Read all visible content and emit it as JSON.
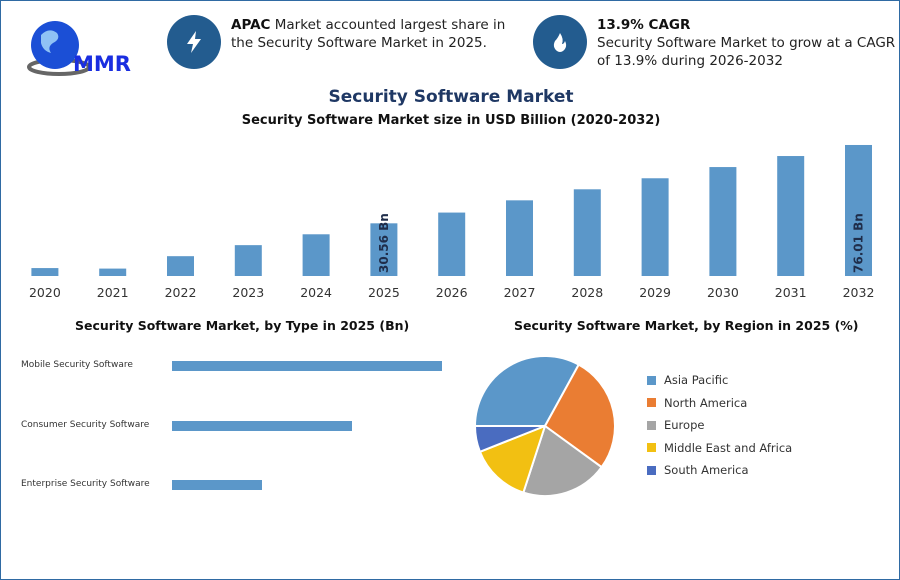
{
  "logo": {
    "text": "MMR"
  },
  "info_cards": [
    {
      "icon": "lightning-icon",
      "bold": "APAC",
      "text": " Market accounted largest share in the Security Software Market in 2025."
    },
    {
      "icon": "flame-icon",
      "bold": "13.9% CAGR",
      "text": "Security Software Market to grow at a CAGR of 13.9% during 2026-2032"
    }
  ],
  "colors": {
    "bar": "#5b97c9",
    "accent": "#235c8f",
    "title": "#1f3864"
  },
  "chart_data": [
    {
      "type": "bar",
      "title": "Security Software Market",
      "subtitle": "Security Software Market size in USD Billion (2020-2032)",
      "categories": [
        "2020",
        "2021",
        "2022",
        "2023",
        "2024",
        "2025",
        "2026",
        "2027",
        "2028",
        "2029",
        "2030",
        "2031",
        "2032"
      ],
      "values": [
        4.6,
        4.3,
        11.5,
        17.9,
        24.2,
        30.56,
        36.8,
        43.9,
        50.3,
        56.7,
        63.2,
        69.6,
        76.01
      ],
      "data_labels": {
        "5": "30.56 Bn",
        "12": "76.01 Bn"
      },
      "ylim": [
        0,
        80
      ],
      "grid": false
    },
    {
      "type": "bar",
      "orientation": "horizontal",
      "title": "Security Software Market, by Type in 2025 (Bn)",
      "categories": [
        "Mobile Security Software",
        "Consumer Security Software",
        "Enterprise Security Software"
      ],
      "values": [
        3,
        2,
        1
      ],
      "value_note": "relative lengths; no axis shown"
    },
    {
      "type": "pie",
      "title": "Security Software Market, by Region in 2025 (%)",
      "categories": [
        "Asia Pacific",
        "North America",
        "Europe",
        "Middle East and Africa",
        "South America"
      ],
      "values": [
        33,
        27,
        20,
        14,
        6
      ],
      "colors": [
        "#5b97c9",
        "#ea7d33",
        "#a5a5a5",
        "#f2c012",
        "#4a6cc0"
      ],
      "legend": "right"
    }
  ]
}
